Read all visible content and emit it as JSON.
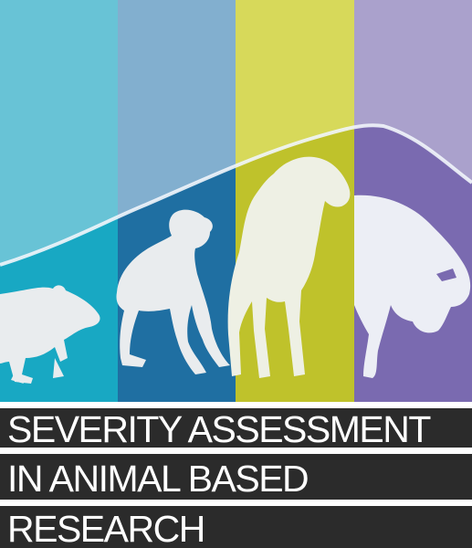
{
  "title": {
    "line1": "SEVERITY ASSESSMENT",
    "line2": "IN ANIMAL BASED",
    "line3": "RESEARCH"
  },
  "colors": {
    "stripe1_light": "#68c3d6",
    "stripe1_dark": "#18a8c3",
    "stripe2_light": "#82afcf",
    "stripe2_dark": "#1f6fa2",
    "stripe3_light": "#d7d95a",
    "stripe3_dark": "#bfc22b",
    "stripe4_light": "#aaa1cc",
    "stripe4_dark": "#7a6ab0",
    "silhouette": "#e9ecee",
    "curve": "#f1f5fb",
    "title_band": "#2b2b2b",
    "title_text": "#ffffff"
  },
  "icons": [
    "rat-silhouette",
    "monkey-silhouette",
    "sheep-silhouette",
    "pig-silhouette",
    "severity-curve"
  ]
}
